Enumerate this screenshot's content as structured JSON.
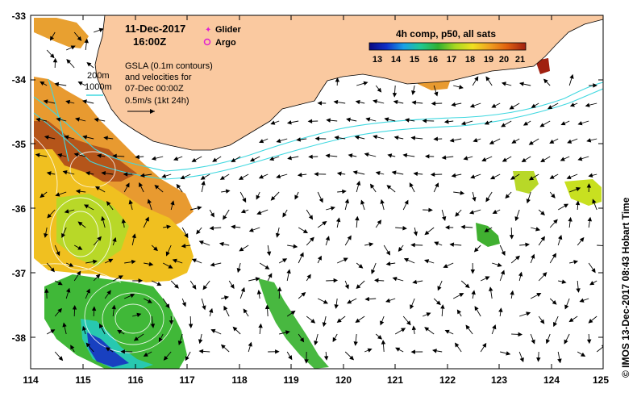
{
  "title": {
    "date": "11-Dec-2017",
    "time": "16:00Z"
  },
  "legend": {
    "glider": "Glider",
    "argo": "Argo"
  },
  "isobaths": {
    "shallow": "200m",
    "deep": "1000m"
  },
  "gsla_note": {
    "line1": "GSLA (0.1m contours)",
    "line2": "and velocities for",
    "line3": "07-Dec 00:00Z",
    "line4": "0.5m/s (1kt 24h)"
  },
  "colorbar": {
    "title": "4h comp, p50, all sats",
    "ticks": [
      "13",
      "14",
      "15",
      "16",
      "17",
      "18",
      "19",
      "20",
      "21"
    ],
    "colors": [
      "#0a0a80",
      "#1030c8",
      "#18a0e8",
      "#20c890",
      "#30b030",
      "#a8d820",
      "#f0e020",
      "#f0a020",
      "#e06010",
      "#a02010"
    ]
  },
  "axes": {
    "x_ticks": [
      "114",
      "115",
      "116",
      "117",
      "118",
      "119",
      "120",
      "121",
      "122",
      "123",
      "124",
      "125"
    ],
    "y_ticks": [
      "-33",
      "-34",
      "-35",
      "-36",
      "-37",
      "-38"
    ]
  },
  "credit": "© IMOS 13-Dec-2017 08:43 Hobart Time",
  "colors": {
    "land": "#fac9a0",
    "contour": "#40d8e0",
    "frame": "#000000"
  }
}
